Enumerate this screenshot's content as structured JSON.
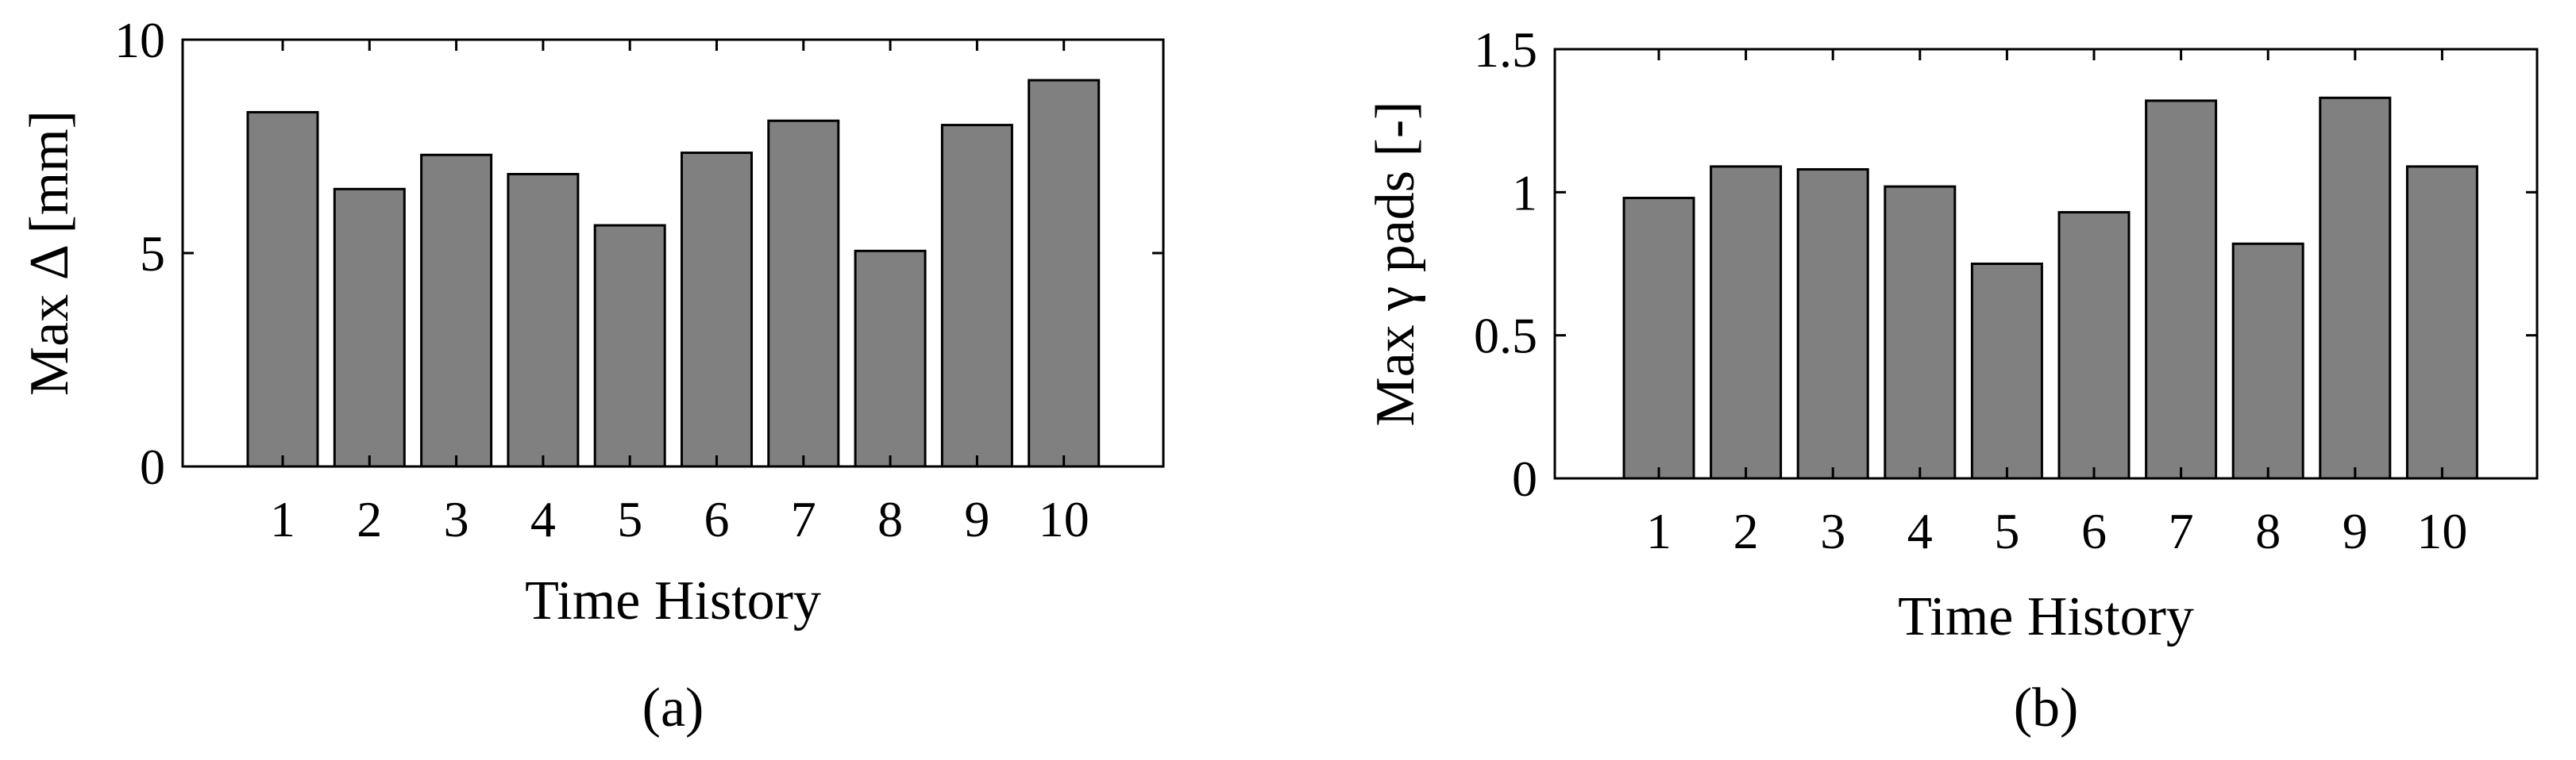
{
  "chart_data": [
    {
      "type": "bar",
      "panel_label": "(a)",
      "categories": [
        "1",
        "2",
        "3",
        "4",
        "5",
        "6",
        "7",
        "8",
        "9",
        "10"
      ],
      "values": [
        8.3,
        6.5,
        7.3,
        6.85,
        5.65,
        7.35,
        8.1,
        5.05,
        8.0,
        9.05
      ],
      "xlabel": "Time History",
      "ylabel": "Max Δ [mm]",
      "ylim": [
        0,
        10
      ],
      "yticks": [
        0,
        5,
        10
      ],
      "ytick_labels": [
        "0",
        "5",
        "10"
      ],
      "bar_color": "#808080",
      "grid": false
    },
    {
      "type": "bar",
      "panel_label": "(b)",
      "categories": [
        "1",
        "2",
        "3",
        "4",
        "5",
        "6",
        "7",
        "8",
        "9",
        "10"
      ],
      "values": [
        0.98,
        1.09,
        1.08,
        1.02,
        0.75,
        0.93,
        1.32,
        0.82,
        1.33,
        1.09
      ],
      "xlabel": "Time History",
      "ylabel": "Max γ pads [-]",
      "ylim": [
        0,
        1.5
      ],
      "yticks": [
        0,
        0.5,
        1,
        1.5
      ],
      "ytick_labels": [
        "0",
        "0.5",
        "1",
        "1.5"
      ],
      "bar_color": "#808080",
      "grid": false
    }
  ]
}
